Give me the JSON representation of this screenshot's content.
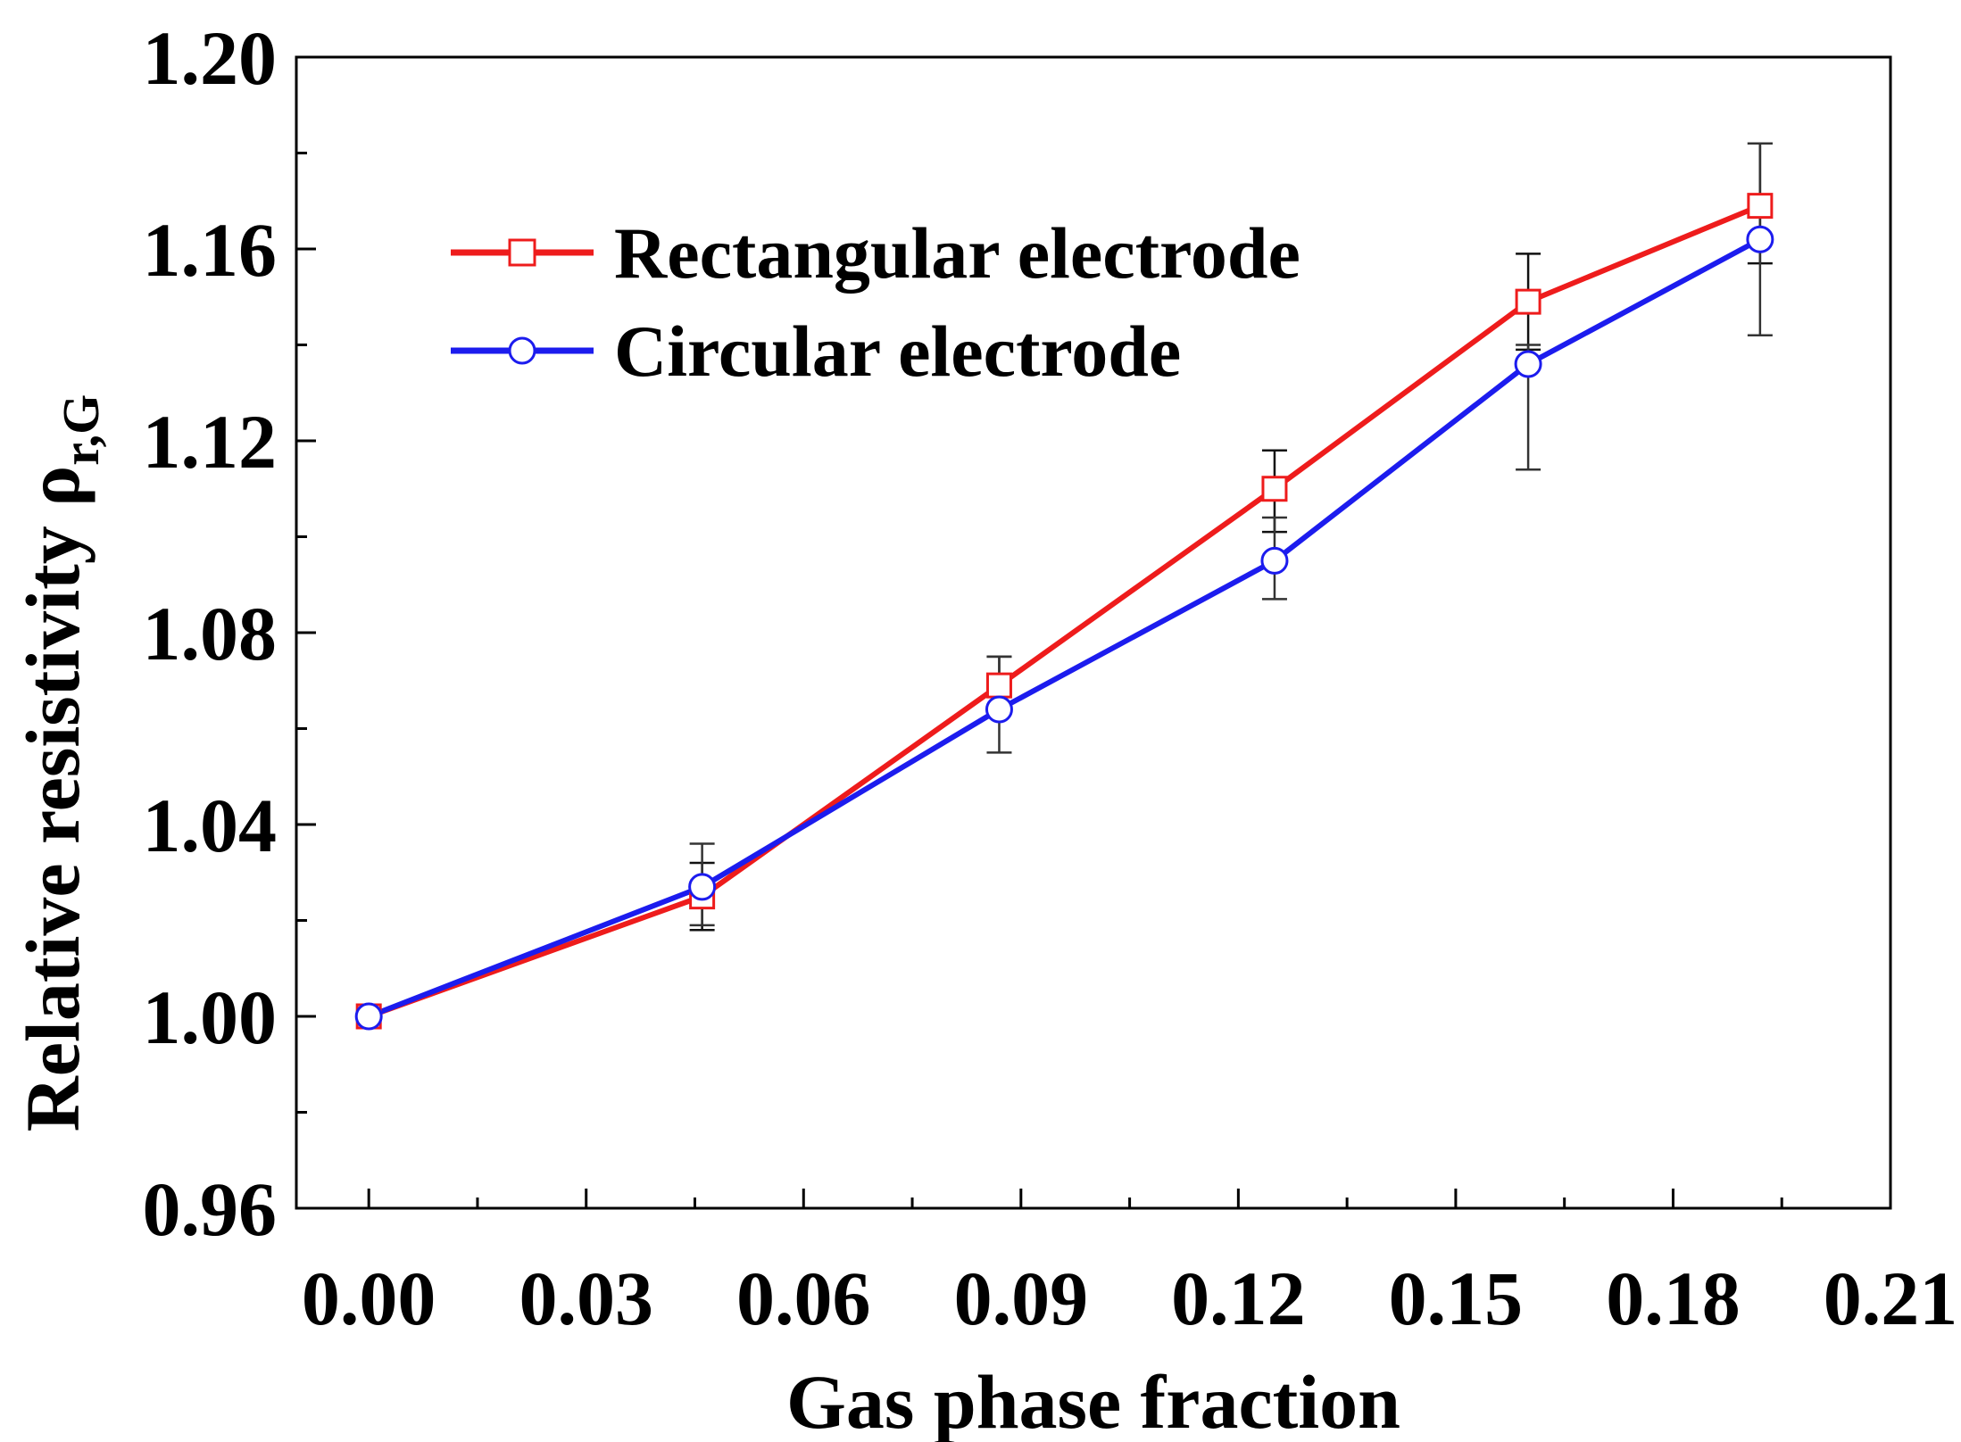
{
  "chart_data": {
    "type": "line",
    "title": "",
    "xlabel": "Gas phase fraction",
    "ylabel": {
      "main": "Relative resistivity ρ",
      "subscript": "r,G"
    },
    "xlim": [
      -0.01,
      0.21
    ],
    "ylim": [
      0.96,
      1.2
    ],
    "x_ticks": [
      0.0,
      0.03,
      0.06,
      0.09,
      0.12,
      0.15,
      0.18,
      0.21
    ],
    "x_tick_labels": [
      "0.00",
      "0.03",
      "0.06",
      "0.09",
      "0.12",
      "0.15",
      "0.18",
      "0.21"
    ],
    "y_ticks": [
      0.96,
      1.0,
      1.04,
      1.08,
      1.12,
      1.16,
      1.2
    ],
    "y_tick_labels": [
      "0.96",
      "1.00",
      "1.04",
      "1.08",
      "1.12",
      "1.16",
      "1.20"
    ],
    "legend_position": "top-left",
    "series": [
      {
        "name": "Rectangular electrode",
        "color": "#ee1c1c",
        "marker": "square",
        "x": [
          0.0,
          0.046,
          0.087,
          0.125,
          0.16,
          0.192
        ],
        "y": [
          1.0,
          1.025,
          1.069,
          1.11,
          1.149,
          1.169
        ],
        "err_low": [
          0.0,
          0.007,
          0.006,
          0.009,
          0.01,
          0.012
        ],
        "err_high": [
          0.0,
          0.007,
          0.006,
          0.008,
          0.01,
          0.013
        ]
      },
      {
        "name": "Circular electrode",
        "color": "#1c1cee",
        "marker": "circle",
        "x": [
          0.0,
          0.046,
          0.087,
          0.125,
          0.16,
          0.192
        ],
        "y": [
          1.0,
          1.027,
          1.064,
          1.095,
          1.136,
          1.162
        ],
        "err_low": [
          0.0,
          0.008,
          0.009,
          0.008,
          0.022,
          0.02
        ],
        "err_high": [
          0.0,
          0.009,
          0.011,
          0.009,
          0.004,
          0.02
        ]
      }
    ]
  }
}
